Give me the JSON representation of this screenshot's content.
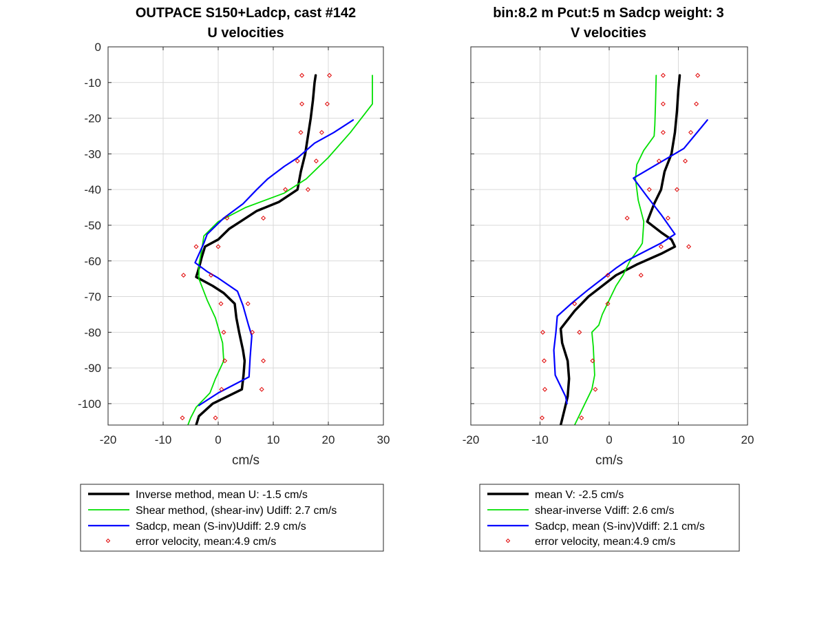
{
  "chart_data": [
    {
      "type": "line",
      "title": "OUTPACE S150+Ladcp, cast #142",
      "subtitle": "U velocities",
      "xlabel": "cm/s",
      "ylabel": "",
      "xlim": [
        -20,
        30
      ],
      "ylim": [
        -106,
        0
      ],
      "xticks": [
        "-20",
        "-10",
        "0",
        "10",
        "20",
        "30"
      ],
      "yticks": [
        "0",
        "-10",
        "-20",
        "-30",
        "-40",
        "-50",
        "-60",
        "-70",
        "-80",
        "-90",
        "-100"
      ],
      "grid": true,
      "legend_position": "below",
      "series": [
        {
          "name": "Inverse method, mean U:  -1.5 cm/s",
          "style": "line",
          "color": "#000000",
          "width": 3.5,
          "points": [
            [
              17.7,
              -8
            ],
            [
              17.5,
              -10
            ],
            [
              17.2,
              -15
            ],
            [
              16.8,
              -20
            ],
            [
              16.3,
              -25
            ],
            [
              15.8,
              -30
            ],
            [
              15.0,
              -35
            ],
            [
              14.4,
              -40
            ],
            [
              11,
              -43.5
            ],
            [
              7,
              -46
            ],
            [
              4,
              -49
            ],
            [
              2,
              -51
            ],
            [
              0,
              -54
            ],
            [
              -2.4,
              -56
            ],
            [
              -3,
              -59
            ],
            [
              -3.5,
              -62
            ],
            [
              -4,
              -64.5
            ],
            [
              -1,
              -67
            ],
            [
              1,
              -69
            ],
            [
              3,
              -72
            ],
            [
              3.3,
              -76
            ],
            [
              3.8,
              -80
            ],
            [
              4.5,
              -85
            ],
            [
              4.8,
              -88
            ],
            [
              4.6,
              -92
            ],
            [
              4.3,
              -96
            ],
            [
              -1,
              -100
            ],
            [
              -3.5,
              -103.5
            ],
            [
              -4,
              -106
            ]
          ]
        },
        {
          "name": "Shear method, (shear-inv)  Udiff:  2.7 cm/s",
          "style": "line",
          "color": "#00e000",
          "width": 1.8,
          "points": [
            [
              28,
              -8
            ],
            [
              28,
              -16
            ],
            [
              24,
              -24
            ],
            [
              20,
              -31
            ],
            [
              16,
              -37
            ],
            [
              12,
              -41
            ],
            [
              5,
              -45
            ],
            [
              0,
              -49
            ],
            [
              -2.6,
              -53
            ],
            [
              -3,
              -57
            ],
            [
              -3.5,
              -61
            ],
            [
              -3.5,
              -65
            ],
            [
              -2,
              -71
            ],
            [
              -0.5,
              -76
            ],
            [
              0.8,
              -83
            ],
            [
              1,
              -88
            ],
            [
              -0.5,
              -93
            ],
            [
              -1.5,
              -97
            ],
            [
              -4,
              -101
            ],
            [
              -5,
              -104
            ],
            [
              -5.5,
              -106
            ]
          ]
        },
        {
          "name": "Sadcp, mean (S-inv)Udiff: 2.9 cm/s",
          "style": "line",
          "color": "#0000ff",
          "width": 2.2,
          "points": [
            [
              24.5,
              -20.5
            ],
            [
              21,
              -24
            ],
            [
              17.5,
              -27
            ],
            [
              14.5,
              -31
            ],
            [
              12,
              -33.5
            ],
            [
              9,
              -37
            ],
            [
              7,
              -40
            ],
            [
              4.5,
              -44
            ],
            [
              1,
              -48
            ],
            [
              -2,
              -52.5
            ],
            [
              -2.6,
              -55
            ],
            [
              -4.2,
              -60.5
            ],
            [
              -2,
              -63
            ],
            [
              0,
              -64.8
            ],
            [
              3.5,
              -68.5
            ],
            [
              4.5,
              -72.5
            ],
            [
              5.5,
              -78
            ],
            [
              6.1,
              -81
            ],
            [
              5.8,
              -87
            ],
            [
              5.6,
              -92.5
            ],
            [
              0,
              -97
            ],
            [
              -3.5,
              -100.5
            ]
          ]
        },
        {
          "name": "error velocity, mean:4.9 cm/s",
          "style": "markers",
          "color": "#e00000",
          "points": [
            [
              15.2,
              -8
            ],
            [
              20.2,
              -8
            ],
            [
              15.2,
              -16
            ],
            [
              19.8,
              -16
            ],
            [
              15,
              -24
            ],
            [
              18.8,
              -24
            ],
            [
              14.4,
              -32
            ],
            [
              17.8,
              -32
            ],
            [
              12.2,
              -40
            ],
            [
              16.3,
              -40
            ],
            [
              1.6,
              -48
            ],
            [
              8.2,
              -48
            ],
            [
              -4,
              -56
            ],
            [
              0,
              -56
            ],
            [
              -6.3,
              -64
            ],
            [
              -1.3,
              -64
            ],
            [
              0.5,
              -72
            ],
            [
              5.4,
              -72
            ],
            [
              1,
              -80
            ],
            [
              6.2,
              -80
            ],
            [
              1.2,
              -88
            ],
            [
              8.2,
              -88
            ],
            [
              0.6,
              -96
            ],
            [
              7.9,
              -96
            ],
            [
              -6.5,
              -104
            ],
            [
              -0.5,
              -104
            ]
          ]
        }
      ]
    },
    {
      "type": "line",
      "title": "bin:8.2 m  Pcut:5 m  Sadcp weight: 3",
      "subtitle": "V velocities",
      "xlabel": "cm/s",
      "ylabel": "",
      "xlim": [
        -20,
        20
      ],
      "ylim": [
        -106,
        0
      ],
      "xticks": [
        "-20",
        "-10",
        "0",
        "10",
        "20"
      ],
      "grid": true,
      "legend_position": "below",
      "series": [
        {
          "name": "mean V:  -2.5 cm/s",
          "style": "line",
          "color": "#000000",
          "width": 3.5,
          "points": [
            [
              10.2,
              -8
            ],
            [
              10,
              -12
            ],
            [
              9.8,
              -18
            ],
            [
              9.5,
              -24
            ],
            [
              9,
              -30
            ],
            [
              8,
              -35
            ],
            [
              7.5,
              -40
            ],
            [
              6.5,
              -44
            ],
            [
              5.5,
              -49
            ],
            [
              7.5,
              -52
            ],
            [
              9,
              -54
            ],
            [
              9.5,
              -56
            ],
            [
              7.5,
              -58
            ],
            [
              4,
              -61
            ],
            [
              1,
              -64
            ],
            [
              -1,
              -67
            ],
            [
              -3,
              -70
            ],
            [
              -5,
              -74
            ],
            [
              -7,
              -79
            ],
            [
              -6.8,
              -83
            ],
            [
              -6,
              -88
            ],
            [
              -5.8,
              -93
            ],
            [
              -6,
              -98
            ],
            [
              -6.5,
              -102
            ],
            [
              -7,
              -106
            ]
          ]
        },
        {
          "name": "shear-inverse Vdiff:  2.6 cm/s",
          "style": "line",
          "color": "#00e000",
          "width": 1.8,
          "points": [
            [
              6.8,
              -8
            ],
            [
              6.7,
              -16
            ],
            [
              6.6,
              -22
            ],
            [
              6.5,
              -25
            ],
            [
              5,
              -29
            ],
            [
              4,
              -33
            ],
            [
              3.8,
              -37
            ],
            [
              4.2,
              -43
            ],
            [
              5,
              -49
            ],
            [
              4.8,
              -55
            ],
            [
              4.5,
              -56
            ],
            [
              3,
              -60
            ],
            [
              2,
              -64
            ],
            [
              1,
              -67
            ],
            [
              0,
              -71
            ],
            [
              -1,
              -75
            ],
            [
              -1.5,
              -78
            ],
            [
              -2.5,
              -80
            ],
            [
              -2.3,
              -84
            ],
            [
              -2.1,
              -92
            ],
            [
              -2.5,
              -96
            ],
            [
              -3.5,
              -100
            ],
            [
              -4.5,
              -104
            ],
            [
              -5,
              -106
            ]
          ]
        },
        {
          "name": "Sadcp, mean (S-inv)Vdiff: 2.1 cm/s",
          "style": "line",
          "color": "#0000ff",
          "width": 2.2,
          "points": [
            [
              14.2,
              -20.5
            ],
            [
              10.8,
              -28.5
            ],
            [
              3.5,
              -36.8
            ],
            [
              5.5,
              -42
            ],
            [
              7.5,
              -47
            ],
            [
              9.5,
              -52.5
            ],
            [
              7.5,
              -55
            ],
            [
              4.5,
              -58
            ],
            [
              2.5,
              -60
            ],
            [
              1,
              -62
            ],
            [
              -1,
              -65
            ],
            [
              -3,
              -68
            ],
            [
              -5.5,
              -72
            ],
            [
              -7.5,
              -75.5
            ],
            [
              -7.7,
              -80
            ],
            [
              -8,
              -85
            ],
            [
              -7.8,
              -92
            ],
            [
              -6.3,
              -98
            ],
            [
              -6.1,
              -100
            ]
          ]
        },
        {
          "name": "error velocity, mean:4.9 cm/s",
          "style": "markers",
          "color": "#e00000",
          "points": [
            [
              7.8,
              -8
            ],
            [
              12.8,
              -8
            ],
            [
              7.8,
              -16
            ],
            [
              12.6,
              -16
            ],
            [
              7.8,
              -24
            ],
            [
              11.8,
              -24
            ],
            [
              7.2,
              -32
            ],
            [
              11,
              -32
            ],
            [
              5.8,
              -40
            ],
            [
              9.8,
              -40
            ],
            [
              2.6,
              -48
            ],
            [
              8.5,
              -48
            ],
            [
              7.5,
              -56
            ],
            [
              11.5,
              -56
            ],
            [
              -0.2,
              -64
            ],
            [
              4.6,
              -64
            ],
            [
              -5,
              -72
            ],
            [
              -0.2,
              -72
            ],
            [
              -9.6,
              -80
            ],
            [
              -4.3,
              -80
            ],
            [
              -9.4,
              -88
            ],
            [
              -2.4,
              -88
            ],
            [
              -9.3,
              -96
            ],
            [
              -2,
              -96
            ],
            [
              -9.7,
              -104
            ],
            [
              -4,
              -104
            ]
          ]
        }
      ]
    }
  ]
}
